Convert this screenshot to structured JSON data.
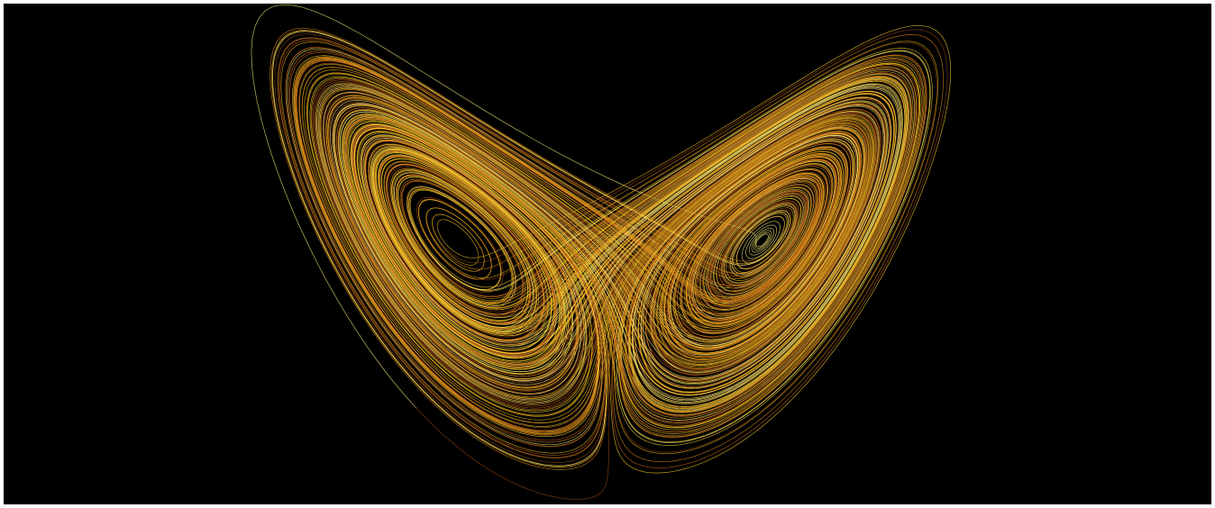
{
  "image": {
    "subject": "",
    "background_color": "#000000",
    "border_color": "#ffffff",
    "palette": [
      "#fff27a",
      "#ffd42a",
      "#f2b91a",
      "#e08a1e",
      "#c8641a",
      "#9a4a12"
    ]
  }
}
